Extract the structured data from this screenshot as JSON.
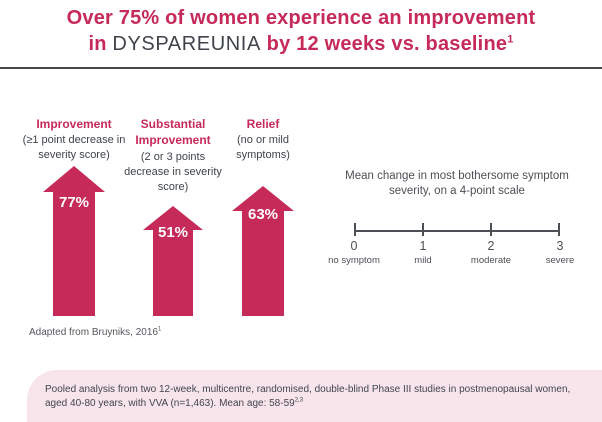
{
  "colors": {
    "crimson": "#c62a58",
    "dark_gray": "#3f444a",
    "axis_gray": "#4c5055",
    "box_pink": "#f8e5eb",
    "divider": "#47484a"
  },
  "title": {
    "line1": "Over 75% of women experience an improvement",
    "line2_pre": "in ",
    "line2_emph": "DYSPAREUNIA",
    "line2_post": " by 12 weeks vs. baseline",
    "line2_sup": "1"
  },
  "columns": [
    {
      "head": "Improvement",
      "sub": "(≥1 point decrease in severity score)",
      "value": "77%"
    },
    {
      "head": "Substantial Improvement",
      "sub": "(2 or 3 points decrease in severity score)",
      "value": "51%"
    },
    {
      "head": "Relief",
      "sub": "(no or mild symptoms)",
      "value": "63%"
    }
  ],
  "scale_panel": {
    "caption": "Mean change in most bothersome symptom severity, on a 4-point scale",
    "ticks": [
      {
        "number": "0",
        "label": "no symptom"
      },
      {
        "number": "1",
        "label": "mild"
      },
      {
        "number": "2",
        "label": "moderate"
      },
      {
        "number": "3",
        "label": "severe"
      }
    ]
  },
  "footnote": {
    "text": "Adapted from Bruyniks, 2016",
    "sup": "1"
  },
  "study_box": {
    "text": "Pooled analysis from two 12-week, multicentre, randomised, double-blind Phase III studies in postmenopausal women, aged 40-80 years, with VVA (n=1,463). Mean age: 58-59",
    "sup": "2,3"
  },
  "chart_data": {
    "type": "bar",
    "title": "Over 75% of women experience an improvement in DYSPAREUNIA by 12 weeks vs. baseline",
    "categories": [
      "Improvement (≥1 point decrease in severity score)",
      "Substantial Improvement (2 or 3 points decrease in severity score)",
      "Relief (no or mild symptoms)"
    ],
    "values": [
      77,
      51,
      63
    ],
    "unit": "%",
    "value_labels": [
      "77%",
      "51%",
      "63%"
    ],
    "bar_color": "#c62a58",
    "orientation": "vertical",
    "legend": "none",
    "grid": false,
    "annotation": "Mean change in most bothersome symptom severity, on a 4-point scale: 0 = no symptom, 1 = mild, 2 = moderate, 3 = severe",
    "source": "Adapted from Bruyniks, 2016"
  }
}
